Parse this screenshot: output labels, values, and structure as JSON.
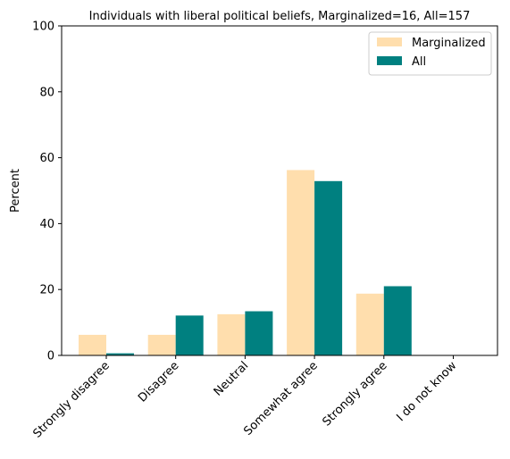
{
  "chart_data": {
    "type": "bar",
    "title": "Individuals with liberal political beliefs, Marginalized=16, All=157",
    "xlabel": "",
    "ylabel": "Percent",
    "ylim": [
      0,
      100
    ],
    "yticks": [
      0,
      20,
      40,
      60,
      80,
      100
    ],
    "categories": [
      "Strongly disagree",
      "Disagree",
      "Neutral",
      "Somewhat agree",
      "Strongly agree",
      "I do not know"
    ],
    "series": [
      {
        "name": "Marginalized",
        "color": "#FFDEAD",
        "values": [
          6.25,
          6.25,
          12.5,
          56.25,
          18.75,
          0
        ]
      },
      {
        "name": "All",
        "color": "#008080",
        "values": [
          0.64,
          12.1,
          13.4,
          52.9,
          21.0,
          0
        ]
      }
    ],
    "legend": "top-right",
    "grid": false
  }
}
